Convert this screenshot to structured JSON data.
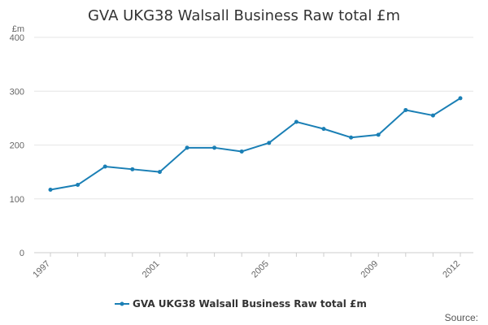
{
  "chart_data": {
    "type": "line",
    "title": "GVA UKG38 Walsall Business Raw total £m",
    "ylabel": "£m",
    "xlabel": "",
    "x": [
      1997,
      1998,
      1999,
      2000,
      2001,
      2002,
      2003,
      2004,
      2005,
      2006,
      2007,
      2008,
      2009,
      2010,
      2011,
      2012
    ],
    "x_tick_labels": [
      "1997",
      "2001",
      "2005",
      "2009",
      "2012"
    ],
    "y_tick_labels": [
      "0",
      "100",
      "200",
      "300",
      "400"
    ],
    "ylim": [
      0,
      400
    ],
    "grid": true,
    "legend_position": "bottom",
    "series": [
      {
        "name": "GVA UKG38 Walsall Business Raw total £m",
        "color": "#1a7fb5",
        "values": [
          117,
          126,
          160,
          155,
          150,
          195,
          195,
          188,
          204,
          243,
          230,
          214,
          219,
          265,
          255,
          287
        ]
      }
    ]
  },
  "source_label": "Source:"
}
